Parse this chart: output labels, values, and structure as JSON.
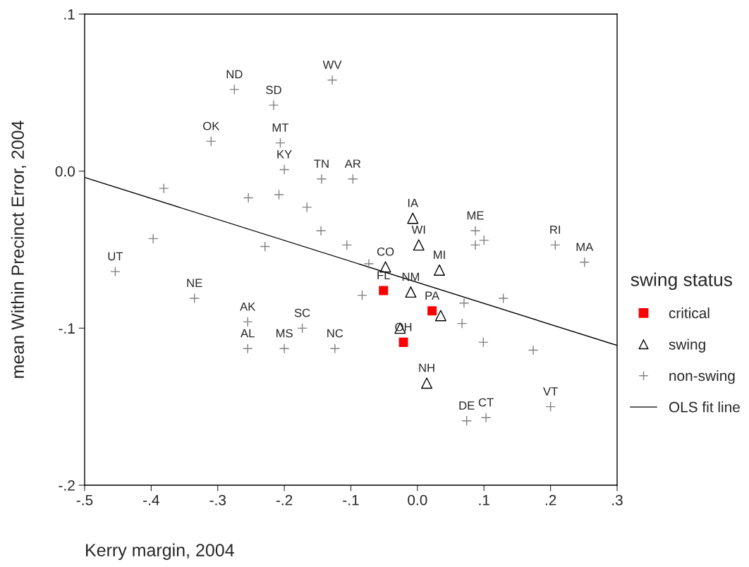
{
  "chart_data": {
    "type": "scatter",
    "xlabel": "Kerry margin, 2004",
    "ylabel": "mean Within Precinct Error, 2004",
    "legend_title": "swing status",
    "legend": "right",
    "grid": false,
    "xlim": [
      -0.5,
      0.3
    ],
    "ylim": [
      -0.2,
      0.1
    ],
    "xticks": [
      {
        "value": -0.5,
        "label": "-.5"
      },
      {
        "value": -0.4,
        "label": "-.4"
      },
      {
        "value": -0.3,
        "label": "-.3"
      },
      {
        "value": -0.2,
        "label": "-.2"
      },
      {
        "value": -0.1,
        "label": "-.1"
      },
      {
        "value": 0,
        "label": "0.0"
      },
      {
        "value": 0.1,
        "label": ".1"
      },
      {
        "value": 0.2,
        "label": ".2"
      },
      {
        "value": 0.3,
        "label": ".3"
      }
    ],
    "yticks": [
      {
        "value": -0.2,
        "label": "-.2"
      },
      {
        "value": -0.1,
        "label": "-.1"
      },
      {
        "value": 0,
        "label": "0.0"
      },
      {
        "value": 0.1,
        "label": ".1"
      }
    ],
    "series": [
      {
        "name": "critical",
        "color": "#ff0000",
        "marker": "square",
        "x": [
          -0.051,
          -0.021,
          0.022
        ],
        "values": [
          -0.076,
          -0.109,
          -0.089
        ]
      },
      {
        "name": "swing",
        "color": "#000000",
        "marker": "triangle",
        "x": [
          -0.007,
          0.002,
          -0.048,
          0.033,
          -0.01,
          0.035,
          -0.026,
          0.014
        ],
        "values": [
          -0.03,
          -0.047,
          -0.061,
          -0.063,
          -0.077,
          -0.092,
          -0.1,
          -0.135
        ]
      },
      {
        "name": "non-swing",
        "color": "#808080",
        "marker": "cross",
        "x": [
          -0.275,
          -0.216,
          -0.128,
          -0.31,
          -0.206,
          -0.2,
          -0.144,
          -0.097,
          -0.454,
          -0.335,
          -0.255,
          -0.255,
          -0.2,
          -0.173,
          -0.124,
          0.087,
          0.207,
          0.251,
          0.074,
          0.103,
          0.2,
          -0.381,
          -0.254,
          -0.208,
          -0.166,
          -0.145,
          -0.397,
          -0.229,
          -0.106,
          -0.073,
          -0.083,
          0.087,
          0.1,
          0.07,
          0.129,
          0.067,
          0.099,
          0.174
        ],
        "values": [
          0.052,
          0.042,
          0.058,
          0.019,
          0.018,
          0.001,
          -0.005,
          -0.005,
          -0.064,
          -0.081,
          -0.096,
          -0.113,
          -0.113,
          -0.1,
          -0.113,
          -0.038,
          -0.047,
          -0.058,
          -0.159,
          -0.157,
          -0.15,
          -0.011,
          -0.017,
          -0.015,
          -0.023,
          -0.038,
          -0.043,
          -0.048,
          -0.047,
          -0.059,
          -0.079,
          -0.047,
          -0.044,
          -0.084,
          -0.081,
          -0.097,
          -0.109,
          -0.114
        ]
      },
      {
        "name": "OLS fit line",
        "type": "line",
        "color": "#000000",
        "marker": "none",
        "x": [
          -0.5,
          0.3
        ],
        "values": [
          -0.004,
          -0.111
        ]
      }
    ],
    "annotations": [
      {
        "text": "FL",
        "x": -0.051,
        "y": -0.076
      },
      {
        "text": "OH",
        "x": -0.021,
        "y": -0.109
      },
      {
        "text": "PA",
        "x": 0.022,
        "y": -0.089
      },
      {
        "text": "IA",
        "x": -0.007,
        "y": -0.03
      },
      {
        "text": "WI",
        "x": 0.002,
        "y": -0.047
      },
      {
        "text": "CO",
        "x": -0.048,
        "y": -0.061
      },
      {
        "text": "MI",
        "x": 0.033,
        "y": -0.063
      },
      {
        "text": "NM",
        "x": -0.01,
        "y": -0.077
      },
      {
        "text": "NH",
        "x": 0.014,
        "y": -0.135
      },
      {
        "text": "ND",
        "x": -0.275,
        "y": 0.052
      },
      {
        "text": "SD",
        "x": -0.216,
        "y": 0.042
      },
      {
        "text": "WV",
        "x": -0.128,
        "y": 0.058
      },
      {
        "text": "OK",
        "x": -0.31,
        "y": 0.019
      },
      {
        "text": "MT",
        "x": -0.206,
        "y": 0.018
      },
      {
        "text": "KY",
        "x": -0.2,
        "y": 0.001
      },
      {
        "text": "TN",
        "x": -0.144,
        "y": -0.005
      },
      {
        "text": "AR",
        "x": -0.097,
        "y": -0.005
      },
      {
        "text": "UT",
        "x": -0.454,
        "y": -0.064
      },
      {
        "text": "NE",
        "x": -0.335,
        "y": -0.081
      },
      {
        "text": "AK",
        "x": -0.255,
        "y": -0.096
      },
      {
        "text": "AL",
        "x": -0.255,
        "y": -0.113
      },
      {
        "text": "MS",
        "x": -0.2,
        "y": -0.113
      },
      {
        "text": "SC",
        "x": -0.173,
        "y": -0.1
      },
      {
        "text": "NC",
        "x": -0.124,
        "y": -0.113
      },
      {
        "text": "ME",
        "x": 0.087,
        "y": -0.038
      },
      {
        "text": "RI",
        "x": 0.207,
        "y": -0.047
      },
      {
        "text": "MA",
        "x": 0.251,
        "y": -0.058
      },
      {
        "text": "DE",
        "x": 0.074,
        "y": -0.159
      },
      {
        "text": "CT",
        "x": 0.103,
        "y": -0.157
      },
      {
        "text": "VT",
        "x": 0.2,
        "y": -0.15
      }
    ]
  }
}
